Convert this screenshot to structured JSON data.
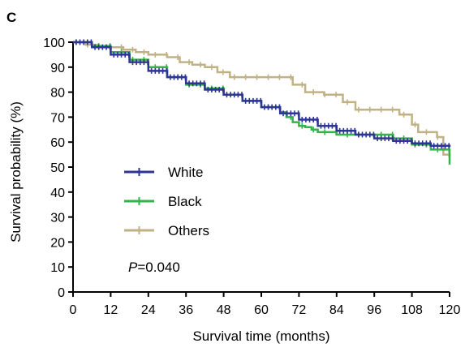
{
  "panel_label": "C",
  "chart_data": {
    "type": "line",
    "subtype": "kaplan-meier",
    "title": "",
    "xlabel": "Survival time (months)",
    "ylabel": "Survival probability (%)",
    "xlim": [
      0,
      120
    ],
    "ylim": [
      0,
      100
    ],
    "xticks": [
      0,
      12,
      24,
      36,
      48,
      60,
      72,
      84,
      96,
      108,
      120
    ],
    "yticks": [
      0,
      10,
      20,
      30,
      40,
      50,
      60,
      70,
      80,
      90,
      100
    ],
    "grid": false,
    "legend_position": "center-left",
    "annotation": {
      "italic": "P",
      "text": "=0.040"
    },
    "series": [
      {
        "name": "White",
        "color": "#2e3592",
        "censor_marks": "dense",
        "x": [
          0,
          6,
          12,
          18,
          24,
          30,
          36,
          42,
          48,
          54,
          60,
          66,
          72,
          78,
          84,
          90,
          96,
          102,
          108,
          114,
          120
        ],
        "y": [
          100,
          98,
          95,
          92,
          88.5,
          86,
          83.5,
          81,
          79,
          76.5,
          74,
          71.5,
          69,
          66.5,
          64.5,
          63,
          61.5,
          60.5,
          59.5,
          58.5,
          58
        ]
      },
      {
        "name": "Black",
        "color": "#33b44a",
        "censor_marks": "sparse",
        "x": [
          0,
          6,
          12,
          18,
          24,
          30,
          36,
          42,
          48,
          54,
          60,
          66,
          68,
          70,
          72,
          74,
          76,
          78,
          84,
          90,
          96,
          102,
          108,
          114,
          119,
          120
        ],
        "y": [
          100,
          98.5,
          96,
          93,
          90,
          86,
          83,
          81.5,
          79,
          76.5,
          74,
          72,
          70,
          68,
          66.5,
          66,
          65,
          64,
          63,
          63,
          63,
          61.5,
          59,
          57,
          57,
          51
        ]
      },
      {
        "name": "Others",
        "color": "#c1b286",
        "censor_marks": "sparse",
        "x": [
          0,
          4,
          8,
          12,
          16,
          20,
          24,
          30,
          34,
          38,
          42,
          46,
          50,
          56,
          62,
          66,
          70,
          74,
          80,
          84,
          86,
          90,
          96,
          100,
          104,
          108,
          110,
          114,
          116,
          118,
          120
        ],
        "y": [
          100,
          99,
          98,
          98,
          97,
          96,
          95,
          94,
          92,
          91,
          90,
          88,
          86,
          86,
          86,
          86,
          83,
          80,
          79,
          79,
          76,
          73,
          73,
          73,
          71,
          67,
          64,
          64,
          62,
          55,
          54
        ]
      }
    ]
  }
}
